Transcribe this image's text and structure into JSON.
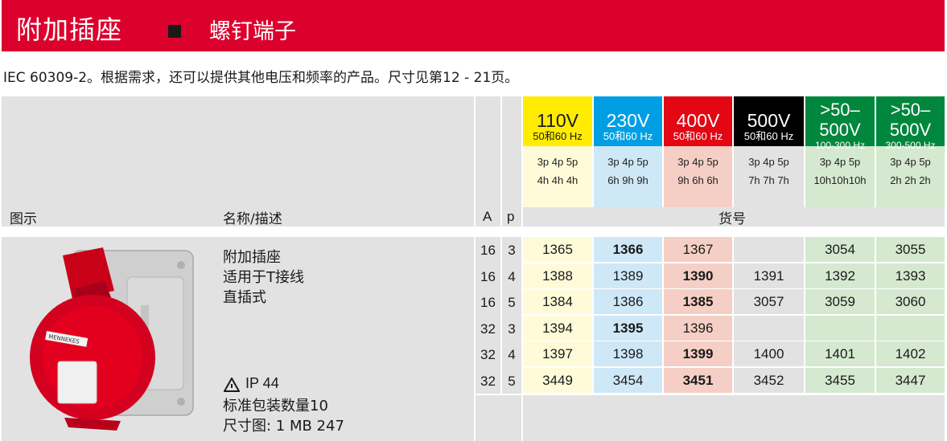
{
  "header": {
    "title": "附加插座",
    "subtitle": "螺钉端子"
  },
  "intro": "IEC 60309-2。根据需求，还可以提供其他电压和频率的产品。尺寸见第12 - 21页。",
  "table_header": {
    "col_image": "图示",
    "col_name": "名称/描述",
    "col_a": "A",
    "col_p": "p",
    "col_order": "货号"
  },
  "voltages": [
    {
      "v": "110V",
      "hz": "50和60 Hz",
      "codes1": "3p 4p 5p",
      "codes2": "4h 4h 4h",
      "color": "#ffec00",
      "text_color": "#1a1a1a",
      "light": "#fffbd9"
    },
    {
      "v": "230V",
      "hz": "50和60 Hz",
      "codes1": "3p 4p 5p",
      "codes2": "6h 9h 9h",
      "color": "#009fe3",
      "text_color": "#ffffff",
      "light": "#cfe8f7"
    },
    {
      "v": "400V",
      "hz": "50和60 Hz",
      "codes1": "3p 4p 5p",
      "codes2": "9h 6h 6h",
      "color": "#e30613",
      "text_color": "#ffffff",
      "light": "#f5cfc5"
    },
    {
      "v": "500V",
      "hz": "50和60 Hz",
      "codes1": "3p 4p 5p",
      "codes2": "7h 7h 7h",
      "color": "#000000",
      "text_color": "#ffffff",
      "light": "#e2e2e2"
    },
    {
      "v": ">50–\n500V",
      "hz": "100-300 Hz",
      "codes1": "3p 4p 5p",
      "codes2": "10h10h10h",
      "color": "#00873d",
      "text_color": "#ffffff",
      "light": "#d4e9d0"
    },
    {
      "v": ">50–\n500V",
      "hz": "300-500 Hz",
      "codes1": "3p 4p 5p",
      "codes2": "2h 2h 2h",
      "color": "#00873d",
      "text_color": "#ffffff",
      "light": "#d4e9d0"
    }
  ],
  "product": {
    "name_lines": [
      "附加插座",
      "适用于T接线",
      "直插式"
    ],
    "ip": "IP 44",
    "pack": "标准包装数量10",
    "dims": "尺寸图: 1 MB 247",
    "warning_icon": "warning-triangle-icon",
    "image_label": "MENNEKES"
  },
  "rows": [
    {
      "a": "16",
      "p": "3",
      "cells": [
        "1365",
        "1366",
        "1367",
        "",
        "3054",
        "3055"
      ],
      "bold": [
        1
      ]
    },
    {
      "a": "16",
      "p": "4",
      "cells": [
        "1388",
        "1389",
        "1390",
        "1391",
        "1392",
        "1393"
      ],
      "bold": [
        2
      ]
    },
    {
      "a": "16",
      "p": "5",
      "cells": [
        "1384",
        "1386",
        "1385",
        "3057",
        "3059",
        "3060"
      ],
      "bold": [
        2
      ]
    },
    {
      "a": "32",
      "p": "3",
      "cells": [
        "1394",
        "1395",
        "1396",
        "",
        "",
        ""
      ],
      "bold": [
        1
      ]
    },
    {
      "a": "32",
      "p": "4",
      "cells": [
        "1397",
        "1398",
        "1399",
        "1400",
        "1401",
        "1402"
      ],
      "bold": [
        2
      ]
    },
    {
      "a": "32",
      "p": "5",
      "cells": [
        "3449",
        "3454",
        "3451",
        "3452",
        "3455",
        "3447"
      ],
      "bold": [
        2
      ]
    }
  ]
}
